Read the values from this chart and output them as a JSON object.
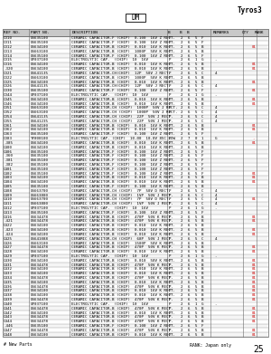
{
  "title_product": "Tyros3",
  "dm_label": "DM",
  "page_number": "25",
  "footer_left": "# New Parts",
  "footer_right": "RANK: Japan only",
  "table_rows": [
    [
      "C310",
      "US635100",
      "CERAMIC CAPACITOR-F (CHIP)  0.100  16V Z RECT.",
      "P",
      "2",
      "6",
      "5",
      "F",
      "",
      ""
    ],
    [
      "C311",
      "US635100",
      "CERAMIC CAPACITOR-F (CHIP)  0.100  16V Z RECT.",
      "P",
      "2",
      "6",
      "5",
      "F",
      "",
      ""
    ],
    [
      "C312",
      "US634100",
      "CERAMIC CAPACITOR-B (CHIP)  0.010  16V K RECT.",
      "P",
      "2",
      "6",
      "5",
      "B",
      "",
      "01"
    ],
    [
      "C313",
      "US663100",
      "CERAMIC CAPACITOR-B (CHIP)  1000P  50V K RECT.",
      "P",
      "2",
      "6",
      "5",
      "B",
      "",
      ""
    ],
    [
      "C314",
      "US635100",
      "CERAMIC CAPACITOR-F (CHIP)  0.100  16V Z RECT.",
      "P",
      "2",
      "6",
      "5",
      "F",
      "",
      ""
    ],
    [
      "C315",
      "UF037100",
      "ELECTROLYTIC CAP.  (CHIP)  10  16V",
      "P",
      "2",
      "6",
      "1",
      "G",
      "-",
      ""
    ],
    [
      "C316",
      "US634100",
      "CERAMIC CAPACITOR-B (CHIP)  0.010  16V K RECT.",
      "P",
      "2",
      "6",
      "5",
      "B",
      "",
      "01"
    ],
    [
      "-320",
      "US634100",
      "CERAMIC CAPACITOR-B (CHIP)  0.010  16V K RECT.",
      "P",
      "2",
      "6",
      "5",
      "B",
      "",
      "01"
    ],
    [
      "C321",
      "US641135",
      "CERAMIC CAPACITOR-CH(CHIP)  12P  50V J RECT.",
      "P",
      "2",
      "6",
      "5",
      "C",
      "4",
      ""
    ],
    [
      "C322",
      "US663100",
      "CERAMIC CAPACITOR-B (CHIP)  1000P  50V K RECT.",
      "P",
      "2",
      "6",
      "5",
      "B",
      "",
      ""
    ],
    [
      "C325",
      "US634100",
      "CERAMIC CAPACITOR-B (CHIP)  0.010  16V K RECT.",
      "P",
      "2",
      "6",
      "5",
      "B",
      "",
      "01"
    ],
    [
      "C326",
      "US641135",
      "CERAMIC CAPACITOR-CH(CHIP)  12P  50V J RECT.",
      "P",
      "2",
      "6",
      "5",
      "C",
      "4",
      ""
    ],
    [
      "C330",
      "US635100",
      "CERAMIC CAPACITOR-F (CHIP)  0.100  16V Z RECT.",
      "P",
      "2",
      "6",
      "5",
      "F",
      "",
      "01"
    ],
    [
      "C344",
      "UF037100",
      "ELECTROLYTIC CAP.  (CHIP)  10  16V",
      "P",
      "2",
      "6",
      "1",
      "G",
      "-",
      ""
    ],
    [
      "C345",
      "US634100",
      "CERAMIC CAPACITOR-B (CHIP)  0.010  16V K RECT.",
      "P",
      "2",
      "6",
      "5",
      "B",
      "",
      "01"
    ],
    [
      "C346",
      "US634100",
      "CERAMIC CAPACITOR-B (CHIP)  0.010  16V K RECT.",
      "P",
      "2",
      "6",
      "5",
      "B",
      "",
      "01"
    ],
    [
      "C351",
      "US663100",
      "CERAMIC CAPACITOR-CH (CHIP)  1000P  50V J RECT.",
      "P",
      "2",
      "6",
      "5",
      "C",
      "4",
      ""
    ],
    [
      "C352",
      "US663100",
      "CERAMIC CAPACITOR-CH (CHIP)  1000P  50V J RECT.",
      "P",
      "2",
      "6",
      "5",
      "C",
      "4",
      ""
    ],
    [
      "C354",
      "US641135",
      "CERAMIC CAPACITOR-CH (CHIP)  22P  50V J RECT.",
      "P",
      "2",
      "6",
      "5",
      "C",
      "4",
      ""
    ],
    [
      "C355",
      "US641235",
      "CERAMIC CAPACITOR-CH (CHIP)  22P  50V J RECT.",
      "P",
      "2",
      "6",
      "5",
      "C",
      "4",
      ""
    ],
    [
      "C361",
      "US634100",
      "CERAMIC CAPACITOR-B (CHIP)  0.010  16V K RECT.",
      "P",
      "2",
      "6",
      "5",
      "B",
      "",
      "01"
    ],
    [
      "C362",
      "US634100",
      "CERAMIC CAPACITOR-B (CHIP)  0.010  16V K RECT.",
      "P",
      "2",
      "6",
      "5",
      "B",
      "",
      "01"
    ],
    [
      "C363",
      "US635100",
      "CERAMIC CAPACITOR-F (CHIP)  0.100  16V Z RECT.",
      "P",
      "2",
      "6",
      "5",
      "F",
      "",
      ""
    ],
    [
      "C383",
      "YF800100",
      "ELECTROLYTIC CAP. (CHIP)  10.00  10.0V 85C LOW",
      "P",
      "2",
      "7",
      "0",
      "1",
      "G",
      "-"
    ],
    [
      "-385",
      "US634100",
      "CERAMIC CAPACITOR-B (CHIP)  0.010  16V K RECT.",
      "P",
      "2",
      "6",
      "5",
      "B",
      "",
      "01"
    ],
    [
      "C400",
      "US634100",
      "CERAMIC CAPACITOR-B (CHIP)  0.010  16V K RECT.",
      "P",
      "2",
      "6",
      "5",
      "B",
      "",
      ""
    ],
    [
      "C406",
      "US635100",
      "CERAMIC CAPACITOR-F (CHIP)  0.100  16V Z RECT.",
      "P",
      "2",
      "6",
      "5",
      "F",
      "",
      ""
    ],
    [
      "-360",
      "US635100",
      "CERAMIC CAPACITOR-F (CHIP)  0.100  16V Z RECT.",
      "P",
      "2",
      "6",
      "5",
      "F",
      "",
      ""
    ],
    [
      "-381",
      "US635100",
      "CERAMIC CAPACITOR-F (CHIP)  0.100  16V Z RECT.",
      "P",
      "2",
      "6",
      "5",
      "F",
      "",
      ""
    ],
    [
      "-382",
      "US635100",
      "CERAMIC CAPACITOR-F (CHIP)  0.100  16V Z RECT.",
      "P",
      "2",
      "6",
      "5",
      "F",
      "",
      ""
    ],
    [
      "C401",
      "US635100",
      "CERAMIC CAPACITOR-F (CHIP)  0.100  16V Z RECT.",
      "P",
      "2",
      "6",
      "5",
      "F",
      "",
      ""
    ],
    [
      "C402",
      "US635100",
      "CERAMIC CAPACITOR-F (CHIP)  0.100  16V Z RECT.",
      "P",
      "2",
      "6",
      "5",
      "F",
      "",
      "01"
    ],
    [
      "C403",
      "US634100",
      "CERAMIC CAPACITOR-B (CHIP)  0.010  16V K RECT.",
      "P",
      "2",
      "6",
      "5",
      "B",
      "",
      "01"
    ],
    [
      "C404",
      "US634100",
      "CERAMIC CAPACITOR-B (CHIP)  0.010  16V K RECT.",
      "P",
      "2",
      "6",
      "5",
      "B",
      "",
      "01"
    ],
    [
      "C405",
      "US635100",
      "CERAMIC CAPACITOR-F (CHIP)  0.100  16V K RECT.",
      "P",
      "2",
      "6",
      "5",
      "B",
      "",
      ""
    ],
    [
      "C408",
      "US663700",
      "CERAMIC CAPACITOR-CH (CHIP)  7P  50V D RECT.",
      "P",
      "2",
      "6",
      "5",
      "C",
      "4",
      ""
    ],
    [
      "C409",
      "US663800",
      "CERAMIC CAPACITOR-CH (CHIP)  1VP  50V J RECT.",
      "P",
      "2",
      "6",
      "5",
      "C",
      "4",
      ""
    ],
    [
      "C410",
      "US663700",
      "CERAMIC CAPACITOR-CH (CHIP)  7P  50V D RECT.",
      "P",
      "2",
      "6",
      "5",
      "C",
      "4",
      "01"
    ],
    [
      "C411",
      "US663800",
      "CERAMIC CAPACITOR-CH (CHIP)  1VP  50V J RECT.",
      "P",
      "2",
      "6",
      "5",
      "C",
      "4",
      ""
    ],
    [
      "C412",
      "UF037100",
      "ELECTROLYTIC CAP.  (CHIP)  10  16V",
      "P",
      "2",
      "6",
      "1",
      "G",
      "-",
      ""
    ],
    [
      "C413",
      "US635100",
      "CERAMIC CAPACITOR-F (CHIP)  0.100  16V Z RECT.",
      "P",
      "2",
      "6",
      "5",
      "F",
      "",
      ""
    ],
    [
      "C416",
      "US634478",
      "CERAMIC CAPACITOR-B (CHIP)  470P  50V K RECT.",
      "P",
      "2",
      "6",
      "5",
      "B",
      "",
      "01"
    ],
    [
      "-421",
      "US634478",
      "CERAMIC CAPACITOR-B (CHIP)  470P  50V K RECT.",
      "P",
      "2",
      "6",
      "5",
      "B",
      "",
      "01"
    ],
    [
      "C422",
      "US634100",
      "CERAMIC CAPACITOR-B (CHIP)  0.010  16V K RECT.",
      "P",
      "2",
      "6",
      "5",
      "B",
      "",
      ""
    ],
    [
      "-423",
      "US634100",
      "CERAMIC CAPACITOR-B (CHIP)  0.010  16V K RECT.",
      "P",
      "2",
      "6",
      "5",
      "B",
      "",
      "01"
    ],
    [
      "-424",
      "US634100",
      "CERAMIC CAPACITOR-B (CHIP)  0.010  16V K RECT.",
      "P",
      "2",
      "6",
      "5",
      "B",
      "",
      "01"
    ],
    [
      "C425",
      "US641088",
      "CERAMIC CAPACITOR-CH (CHIP)  68P  50V J RECT.",
      "P",
      "2",
      "6",
      "5",
      "C",
      "4",
      ""
    ],
    [
      "C426",
      "US663100",
      "CERAMIC CAPACITOR-B (CHIP)  1500P  50V K RECT.",
      "P",
      "2",
      "6",
      "5",
      "B",
      "",
      ""
    ],
    [
      "C427",
      "US634478",
      "CERAMIC CAPACITOR-B (CHIP)  470P  50V K RECT.",
      "P",
      "2",
      "6",
      "5",
      "B",
      "",
      "01"
    ],
    [
      "C428",
      "US634100",
      "CERAMIC CAPACITOR-B (CHIP)  0.010  16V K RECT.",
      "P",
      "2",
      "6",
      "5",
      "B",
      "",
      "01"
    ],
    [
      "C429",
      "UF037100",
      "ELECTROLYTIC CAP.  (CHIP)  10  16V",
      "P",
      "2",
      "6",
      "1",
      "G",
      "-",
      ""
    ],
    [
      "C430",
      "US634100",
      "CERAMIC CAPACITOR-B (CHIP)  0.010  50V K RECT.",
      "P",
      "2",
      "6",
      "5",
      "B",
      "",
      "01"
    ],
    [
      "C431",
      "US634478",
      "CERAMIC CAPACITOR-B (CHIP)  470P  50V K RECT.",
      "P",
      "2",
      "6",
      "5",
      "B",
      "",
      "01"
    ],
    [
      "C432",
      "US634100",
      "CERAMIC CAPACITOR-B (CHIP)  0.010  16V K RECT.",
      "P",
      "2",
      "6",
      "5",
      "B",
      "",
      "01"
    ],
    [
      "C433",
      "US634100",
      "CERAMIC CAPACITOR-B (CHIP)  0.010  16V K RECT.",
      "P",
      "2",
      "6",
      "5",
      "B",
      "",
      "01"
    ],
    [
      "C434",
      "US634478",
      "CERAMIC CAPACITOR-B (CHIP)  470P  50V K RECT.",
      "P",
      "2",
      "6",
      "5",
      "B",
      "",
      "01"
    ],
    [
      "C435",
      "US634100",
      "CERAMIC CAPACITOR-B (CHIP)  0.010  16V K RECT.",
      "P",
      "2",
      "6",
      "5",
      "B",
      "",
      "01"
    ],
    [
      "C436",
      "US634478",
      "CERAMIC CAPACITOR-B (CHIP)  470P  50V K RECT.",
      "P",
      "2",
      "6",
      "5",
      "B",
      "",
      "01"
    ],
    [
      "C437",
      "US634100",
      "CERAMIC CAPACITOR-B (CHIP)  0.010  16V K RECT.",
      "P",
      "2",
      "6",
      "5",
      "B",
      "",
      "01"
    ],
    [
      "C438",
      "US634100",
      "CERAMIC CAPACITOR-B (CHIP)  0.010  16V K RECT.",
      "P",
      "2",
      "6",
      "5",
      "B",
      "",
      "01"
    ],
    [
      "C439",
      "US634478",
      "CERAMIC CAPACITOR-B (CHIP)  470P  50V K RECT.",
      "P",
      "2",
      "6",
      "5",
      "B",
      "",
      "01"
    ],
    [
      "C440",
      "UF037100",
      "ELECTROLYTIC CAP.  (CHIP)  10  16V",
      "P",
      "2",
      "6",
      "1",
      "G",
      "-",
      ""
    ],
    [
      "C441",
      "US634478",
      "CERAMIC CAPACITOR-B (CHIP)  470P  50V K RECT.",
      "P",
      "2",
      "6",
      "5",
      "B",
      "",
      "01"
    ],
    [
      "C442",
      "US634100",
      "CERAMIC CAPACITOR-B (CHIP)  0.010  16V K RECT.",
      "P",
      "2",
      "6",
      "5",
      "B",
      "",
      "01"
    ],
    [
      "C443",
      "US634478",
      "CERAMIC CAPACITOR-B (CHIP)  470P  50V K RECT.",
      "P",
      "2",
      "6",
      "5",
      "B",
      "",
      "01"
    ],
    [
      "C444",
      "US634478",
      "CERAMIC CAPACITOR-B (CHIP)  470P  50V K RECT.",
      "P",
      "2",
      "6",
      "5",
      "B",
      "",
      "01"
    ],
    [
      "-446",
      "US635100",
      "CERAMIC CAPACITOR-F (CHIP)  0.100  16V Z RECT.",
      "P",
      "2",
      "6",
      "5",
      "F",
      "",
      ""
    ],
    [
      "C447",
      "US634478",
      "CERAMIC CAPACITOR-B (CHIP)  470P  50V K RECT.",
      "P",
      "2",
      "6",
      "5",
      "B",
      "",
      "01"
    ],
    [
      "C448",
      "US634100",
      "CERAMIC CAPACITOR-B (CHIP)  0.010  16V K RECT.",
      "P",
      "2",
      "6",
      "5",
      "B",
      "",
      "01"
    ]
  ],
  "bg_color": "#ffffff",
  "header_bg": "#c8c8c8",
  "text_color": "#000000",
  "border_color": "#666666",
  "rank_color": "#cc0000",
  "font_size": 3.0,
  "header_font_size": 3.2
}
